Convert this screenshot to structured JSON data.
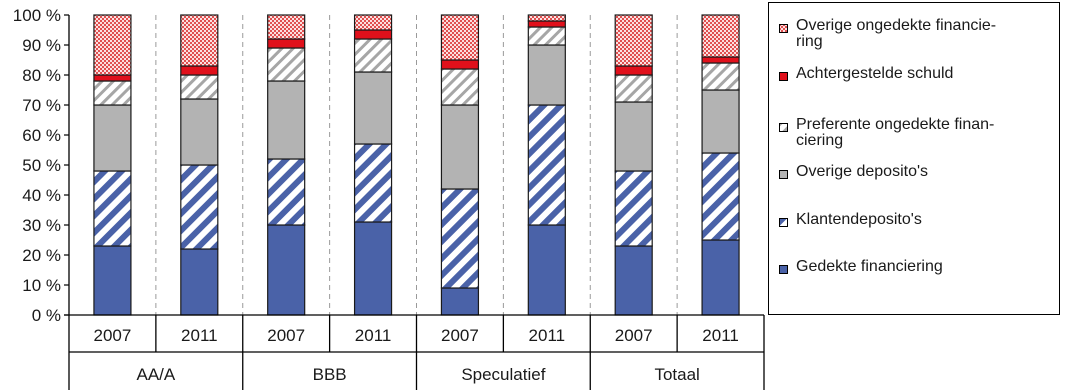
{
  "chart_data": {
    "type": "bar",
    "stacked": true,
    "yticks": [
      "0 %",
      "10 %",
      "20 %",
      "30 %",
      "40 %",
      "50 %",
      "60 %",
      "70 %",
      "80 %",
      "90 %",
      "100 %"
    ],
    "ylim": [
      0,
      100
    ],
    "groups": [
      {
        "label": "AA/A",
        "years": [
          "2007",
          "2011"
        ]
      },
      {
        "label": "BBB",
        "years": [
          "2007",
          "2011"
        ]
      },
      {
        "label": "Speculatief",
        "years": [
          "2007",
          "2011"
        ]
      },
      {
        "label": "Totaal",
        "years": [
          "2007",
          "2011"
        ]
      }
    ],
    "categories": [
      "AA/A 2007",
      "AA/A 2011",
      "BBB 2007",
      "BBB 2011",
      "Speculatief 2007",
      "Speculatief 2011",
      "Totaal 2007",
      "Totaal 2011"
    ],
    "series": [
      {
        "name": "Gedekte financiering",
        "values": [
          23,
          22,
          30,
          31,
          9,
          30,
          23,
          25
        ],
        "color": "#4a62a8"
      },
      {
        "name": "Klantendeposito's",
        "values": [
          25,
          28,
          22,
          26,
          33,
          40,
          25,
          29
        ],
        "color": "#4a62a8"
      },
      {
        "name": "Overige deposito's",
        "values": [
          22,
          22,
          26,
          24,
          28,
          20,
          23,
          21
        ],
        "color": "#b3b3b3"
      },
      {
        "name": "Preferente ongedekte financiering",
        "values": [
          8,
          8,
          11,
          11,
          12,
          6,
          9,
          9
        ],
        "color": "#b3b3b3"
      },
      {
        "name": "Achtergestelde schuld",
        "values": [
          2,
          3,
          3,
          3,
          3,
          2,
          3,
          2
        ],
        "color": "#e0101b"
      },
      {
        "name": "Overige ongedekte financiering",
        "values": [
          20,
          17,
          8,
          5,
          15,
          2,
          17,
          14
        ],
        "color": "#e05050"
      }
    ],
    "legend_position": "right",
    "legend_order": [
      5,
      4,
      3,
      2,
      1,
      0
    ],
    "gridlines": "vertical-dashed"
  },
  "legend": [
    {
      "label": "Overige ongedekte financie-\nring"
    },
    {
      "label": "Achtergestelde schuld"
    },
    {
      "label": "Preferente ongedekte finan-\nciering"
    },
    {
      "label": "Overige deposito's"
    },
    {
      "label": "Klantendeposito's"
    },
    {
      "label": "Gedekte financiering"
    }
  ]
}
